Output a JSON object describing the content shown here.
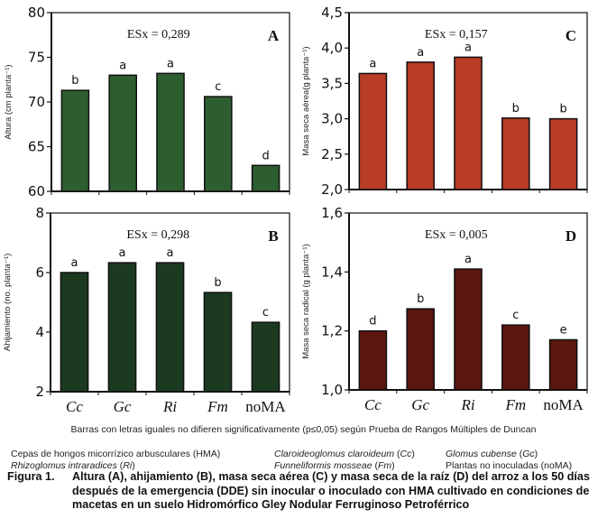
{
  "chart_data": [
    {
      "type": "bar",
      "panel": "A",
      "categories": [
        "Cc",
        "Gc",
        "Ri",
        "Fm",
        "noMA"
      ],
      "values": [
        71.3,
        73.0,
        73.2,
        70.6,
        62.9
      ],
      "significance": [
        "b",
        "a",
        "a",
        "c",
        "d"
      ],
      "ylabel": "Altura (cm planta⁻¹)",
      "ylim": [
        60,
        80
      ],
      "yticks": [
        60,
        65,
        70,
        75,
        80
      ],
      "ytick_labels": [
        "60",
        "65",
        "70",
        "75",
        "80"
      ],
      "esx": "ESx = 0,289",
      "color": "#2d5e30",
      "show_xlabels": false
    },
    {
      "type": "bar",
      "panel": "B",
      "categories": [
        "Cc",
        "Gc",
        "Ri",
        "Fm",
        "noMA"
      ],
      "values": [
        6.0,
        6.33,
        6.33,
        5.33,
        4.33
      ],
      "significance": [
        "a",
        "a",
        "a",
        "b",
        "c"
      ],
      "ylabel": "Ahijamiento (no. planta⁻¹)",
      "ylim": [
        2,
        8
      ],
      "yticks": [
        2,
        4,
        6,
        8
      ],
      "ytick_labels": [
        "2",
        "4",
        "6",
        "8"
      ],
      "esx": "ESx = 0,298",
      "color": "#1c3a20",
      "show_xlabels": true
    },
    {
      "type": "bar",
      "panel": "C",
      "categories": [
        "Cc",
        "Gc",
        "Ri",
        "Fm",
        "noMA"
      ],
      "values": [
        3.64,
        3.8,
        3.87,
        3.01,
        3.0
      ],
      "significance": [
        "a",
        "a",
        "a",
        "b",
        "b"
      ],
      "ylabel": "Masa seca aérea(g  planta⁻¹)",
      "ylim": [
        2.0,
        4.5
      ],
      "yticks": [
        2.0,
        2.5,
        3.0,
        3.5,
        4.0,
        4.5
      ],
      "ytick_labels": [
        "2,0",
        "2,5",
        "3,0",
        "3,5",
        "4,0",
        "4,5"
      ],
      "esx": "ESx = 0,157",
      "color": "#b83c26",
      "show_xlabels": false
    },
    {
      "type": "bar",
      "panel": "D",
      "categories": [
        "Cc",
        "Gc",
        "Ri",
        "Fm",
        "noMA"
      ],
      "values": [
        1.2,
        1.275,
        1.41,
        1.22,
        1.17
      ],
      "significance": [
        "d",
        "b",
        "a",
        "c",
        "e"
      ],
      "ylabel": "Masa seca radical (g  planta⁻¹)",
      "ylim": [
        1.0,
        1.6
      ],
      "yticks": [
        1.0,
        1.2,
        1.4,
        1.6
      ],
      "ytick_labels": [
        "1,0",
        "1,2",
        "1,4",
        "1,6"
      ],
      "esx": "ESx = 0,005",
      "color": "#5a160f",
      "show_xlabels": true
    }
  ],
  "italic_categories": [
    "Cc",
    "Gc",
    "Ri",
    "Fm"
  ],
  "note": "Barras con letras iguales no difieren significativamente (p≤0,05) según Prueba de Rangos Múltiples de Duncan",
  "legend": {
    "col1": [
      "Cepas de hongos micorrízico arbusculares (HMA)",
      "Rhizoglomus intraradices",
      " (",
      "Ri",
      ")"
    ],
    "row1": {
      "hma": "Cepas de hongos micorrízico arbusculares (HMA)",
      "cc_name": "Claroideoglomus claroideum",
      "cc_abbr": "Cc",
      "gc_name": "Glomus cubense",
      "gc_abbr": "Gc"
    },
    "row2": {
      "ri_name": "Rhizoglomus intraradices",
      "ri_abbr": "Ri",
      "fm_name": "Funneliformis mosseae",
      "fm_abbr": "Fm",
      "noma": "Plantas no inoculadas (noMA)"
    }
  },
  "caption": {
    "label": "Figura 1.",
    "text": "Altura (A), ahijamiento (B), masa seca aérea (C) y masa seca de la raíz (D) del arroz a los 50 días después de la emergencia (DDE) sin inocular o inoculado con HMA cultivado en condiciones de macetas en un suelo Hidromórfico Gley Nodular Ferruginoso Petroférrico"
  }
}
